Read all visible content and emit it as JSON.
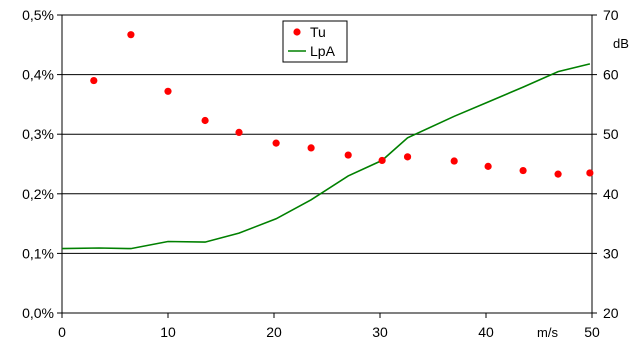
{
  "chart_data": {
    "type": "line",
    "xlabel": "m/s",
    "ylabel_right": "dB",
    "xlim": [
      0,
      50
    ],
    "ylim_left": [
      0,
      0.5
    ],
    "ylim_right": [
      20,
      70
    ],
    "x_ticks": [
      "0",
      "10",
      "20",
      "30",
      "40",
      "50"
    ],
    "y_left_ticks": [
      "0,0%",
      "0,1%",
      "0,2%",
      "0,3%",
      "0,4%",
      "0,5%"
    ],
    "y_right_ticks": [
      "20",
      "30",
      "40",
      "50",
      "60",
      "70"
    ],
    "grid": "horizontal",
    "legend_position": "top-center",
    "series": [
      {
        "name": "Tu",
        "kind": "scatter",
        "axis": "left",
        "unit": "%",
        "color": "#ff0000",
        "points": [
          [
            3.0,
            0.39
          ],
          [
            6.5,
            0.467
          ],
          [
            10.0,
            0.372
          ],
          [
            13.5,
            0.323
          ],
          [
            16.7,
            0.303
          ],
          [
            20.2,
            0.285
          ],
          [
            23.5,
            0.277
          ],
          [
            27.0,
            0.265
          ],
          [
            30.2,
            0.256
          ],
          [
            32.6,
            0.262
          ],
          [
            37.0,
            0.255
          ],
          [
            40.2,
            0.246
          ],
          [
            43.5,
            0.239
          ],
          [
            46.8,
            0.233
          ],
          [
            49.8,
            0.235
          ]
        ]
      },
      {
        "name": "LpA",
        "kind": "line",
        "axis": "right",
        "unit": "dB",
        "color": "#008000",
        "points": [
          [
            0,
            30.8
          ],
          [
            3.5,
            30.9
          ],
          [
            6.5,
            30.8
          ],
          [
            10.0,
            32.0
          ],
          [
            13.5,
            31.9
          ],
          [
            16.7,
            33.4
          ],
          [
            20.2,
            35.8
          ],
          [
            23.5,
            39.0
          ],
          [
            27.0,
            43.0
          ],
          [
            30.2,
            45.6
          ],
          [
            32.6,
            49.4
          ],
          [
            37.0,
            53.0
          ],
          [
            40.2,
            55.4
          ],
          [
            43.5,
            57.9
          ],
          [
            46.8,
            60.5
          ],
          [
            49.8,
            61.8
          ]
        ]
      }
    ]
  }
}
